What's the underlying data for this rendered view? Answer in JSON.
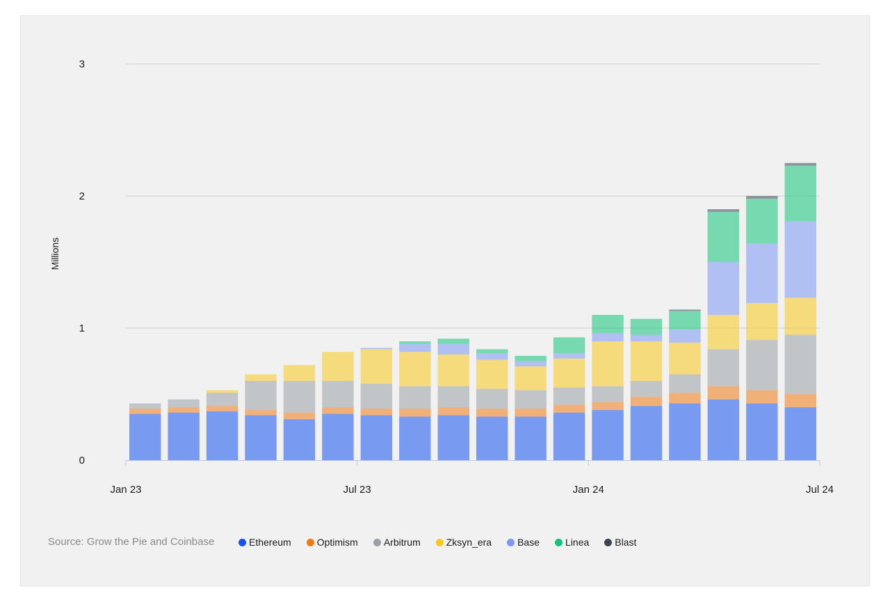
{
  "source": "Source: Grow the Pie and Coinbase",
  "chart_data": {
    "type": "bar",
    "stacked": true,
    "title": "",
    "xlabel": "",
    "ylabel": "Millions",
    "ylim": [
      0,
      3
    ],
    "yticks": [
      "0",
      "1",
      "2",
      "3"
    ],
    "xticks": [
      "Jan 23",
      "Jul 23",
      "Jan 24",
      "Jul 24"
    ],
    "grid": true,
    "legend_position": "bottom",
    "x": [
      "2023-01",
      "2023-02",
      "2023-03",
      "2023-04",
      "2023-05",
      "2023-06",
      "2023-07",
      "2023-08",
      "2023-09",
      "2023-10",
      "2023-11",
      "2023-12",
      "2024-01",
      "2024-02",
      "2024-03",
      "2024-04",
      "2024-05",
      "2024-06"
    ],
    "series": [
      {
        "name": "Ethereum",
        "color": "#1652f0",
        "values": [
          0.35,
          0.36,
          0.37,
          0.34,
          0.31,
          0.35,
          0.34,
          0.33,
          0.34,
          0.33,
          0.33,
          0.36,
          0.38,
          0.41,
          0.43,
          0.46,
          0.43,
          0.4
        ]
      },
      {
        "name": "Optimism",
        "color": "#f07a12",
        "values": [
          0.04,
          0.04,
          0.04,
          0.04,
          0.05,
          0.05,
          0.05,
          0.06,
          0.06,
          0.06,
          0.06,
          0.06,
          0.06,
          0.07,
          0.08,
          0.1,
          0.1,
          0.1
        ]
      },
      {
        "name": "Arbitrum",
        "color": "#9aa0a6",
        "values": [
          0.04,
          0.06,
          0.1,
          0.22,
          0.24,
          0.2,
          0.19,
          0.17,
          0.16,
          0.15,
          0.14,
          0.13,
          0.12,
          0.12,
          0.14,
          0.28,
          0.38,
          0.45
        ]
      },
      {
        "name": "Zksyn_era",
        "color": "#f7c91c",
        "values": [
          0.0,
          0.0,
          0.02,
          0.05,
          0.12,
          0.22,
          0.26,
          0.26,
          0.24,
          0.22,
          0.18,
          0.22,
          0.34,
          0.3,
          0.24,
          0.26,
          0.28,
          0.28
        ]
      },
      {
        "name": "Base",
        "color": "#7b97f2",
        "values": [
          0.0,
          0.0,
          0.0,
          0.0,
          0.0,
          0.0,
          0.01,
          0.06,
          0.08,
          0.05,
          0.04,
          0.04,
          0.06,
          0.05,
          0.1,
          0.4,
          0.45,
          0.58
        ]
      },
      {
        "name": "Linea",
        "color": "#12c47a",
        "values": [
          0.0,
          0.0,
          0.0,
          0.0,
          0.0,
          0.0,
          0.0,
          0.02,
          0.04,
          0.03,
          0.04,
          0.12,
          0.14,
          0.12,
          0.14,
          0.38,
          0.34,
          0.42
        ]
      },
      {
        "name": "Blast",
        "color": "#3a4452",
        "values": [
          0.0,
          0.0,
          0.0,
          0.0,
          0.0,
          0.0,
          0.0,
          0.0,
          0.0,
          0.0,
          0.0,
          0.0,
          0.0,
          0.0,
          0.01,
          0.02,
          0.02,
          0.02
        ]
      }
    ]
  }
}
